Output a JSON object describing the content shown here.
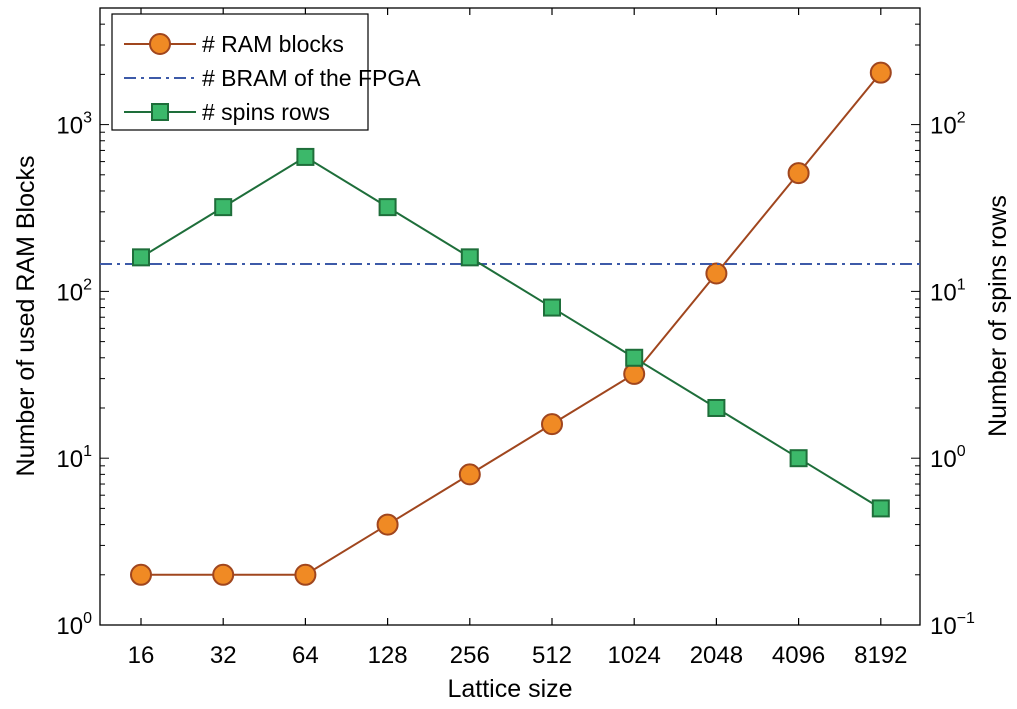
{
  "chart_data": {
    "type": "line",
    "xlabel": "Lattice size",
    "ylabel_left": "Number of used RAM Blocks",
    "ylabel_right": "Number of spins rows",
    "categories": [
      "16",
      "32",
      "64",
      "128",
      "256",
      "512",
      "1024",
      "2048",
      "4096",
      "8192"
    ],
    "left_axis": {
      "scale": "log",
      "ylim": [
        1,
        5000
      ],
      "ticks": [
        {
          "base": "10",
          "exp": "0",
          "value": 1
        },
        {
          "base": "10",
          "exp": "1",
          "value": 10
        },
        {
          "base": "10",
          "exp": "2",
          "value": 100
        },
        {
          "base": "10",
          "exp": "3",
          "value": 1000
        }
      ]
    },
    "right_axis": {
      "scale": "log",
      "ylim": [
        0.1,
        500
      ],
      "ticks": [
        {
          "base": "10",
          "exp": "−1",
          "value": 0.1
        },
        {
          "base": "10",
          "exp": "0",
          "value": 1
        },
        {
          "base": "10",
          "exp": "1",
          "value": 10
        },
        {
          "base": "10",
          "exp": "2",
          "value": 100
        }
      ]
    },
    "series": [
      {
        "name": "# RAM blocks",
        "axis": "left",
        "marker": "circle",
        "line_color": "#a0461e",
        "marker_fill": "#f08a24",
        "values": [
          2,
          2,
          2,
          4,
          8,
          16,
          32,
          128,
          512,
          2048
        ]
      },
      {
        "name": "# BRAM of the FPGA",
        "axis": "left",
        "style": "dashdot",
        "line_color": "#3d5aa8",
        "constant": 146
      },
      {
        "name": "# spins rows",
        "axis": "right",
        "marker": "square",
        "line_color": "#1e6e3a",
        "marker_fill": "#3cb86a",
        "values": [
          16,
          32,
          64,
          32,
          16,
          8,
          4,
          2,
          1,
          0.5
        ]
      }
    ],
    "legend_position": "top-left",
    "grid": false
  }
}
